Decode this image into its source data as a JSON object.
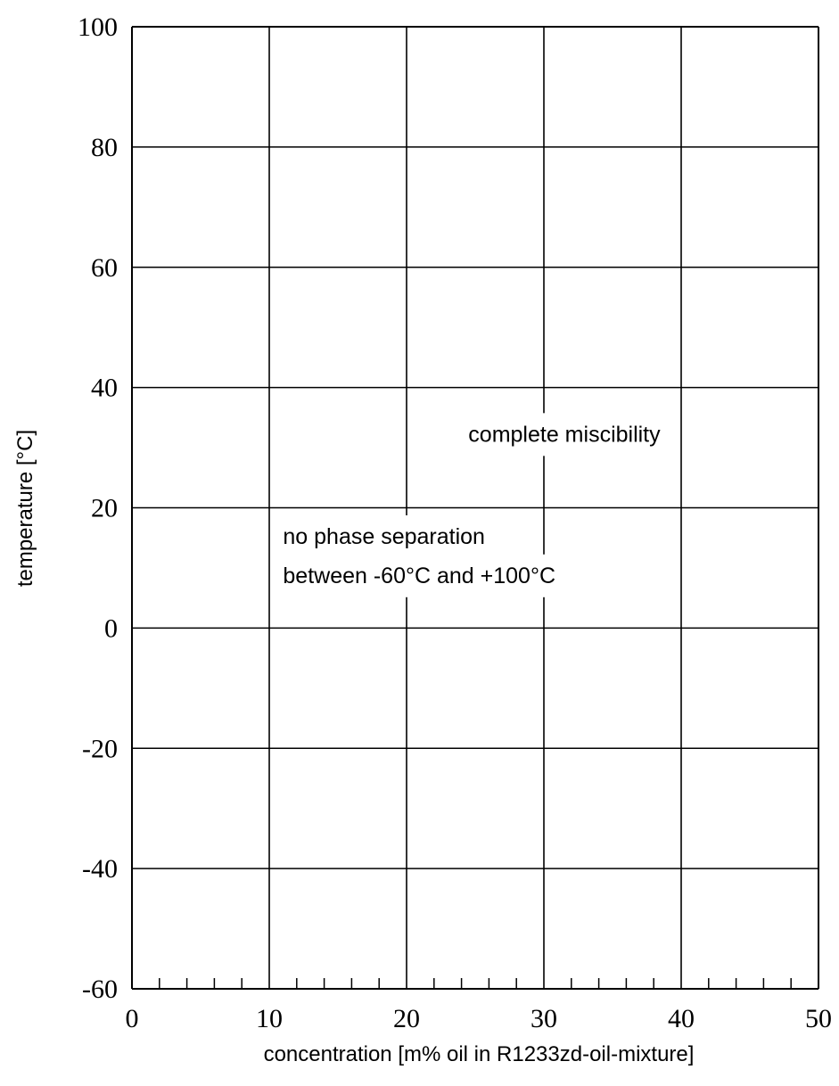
{
  "chart_data": {
    "type": "scatter",
    "title": "",
    "xlabel": "concentration [m% oil in R1233zd-oil-mixture]",
    "ylabel": "temperature [°C]",
    "xlim": [
      0,
      50
    ],
    "ylim": [
      -60,
      100
    ],
    "x_ticks": [
      0,
      10,
      20,
      30,
      40,
      50
    ],
    "y_ticks": [
      -60,
      -40,
      -20,
      0,
      20,
      40,
      60,
      80,
      100
    ],
    "x_minor_step": 2,
    "grid": true,
    "series": [],
    "annotations": [
      {
        "text": "complete miscibility",
        "x": 24.5,
        "y": 31
      },
      {
        "text": "no phase separation",
        "x": 11,
        "y": 14
      },
      {
        "text": "between -60°C and +100°C",
        "x": 11,
        "y": 7.5
      }
    ]
  }
}
